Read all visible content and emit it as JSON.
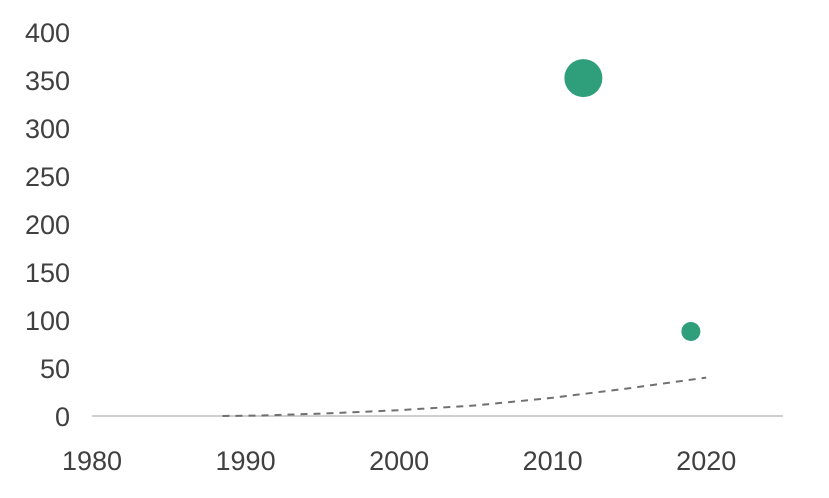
{
  "chart_data": {
    "type": "scatter",
    "title": "",
    "xlabel": "",
    "ylabel": "",
    "xlim": [
      1980,
      2025
    ],
    "ylim": [
      0,
      400
    ],
    "grid": false,
    "x_ticks": [
      "1980",
      "1990",
      "2000",
      "2010",
      "2020"
    ],
    "y_ticks": [
      "0",
      "50",
      "100",
      "150",
      "200",
      "250",
      "300",
      "350",
      "400"
    ],
    "series": [
      {
        "kind": "bubble",
        "color": "#2e9e7b",
        "points": [
          {
            "x": 2012,
            "y": 352,
            "size": "large"
          },
          {
            "x": 2019,
            "y": 88,
            "size": "small"
          }
        ]
      },
      {
        "kind": "trend-dashed",
        "color": "#707070",
        "points": [
          {
            "x": 1988.5,
            "y": 0
          },
          {
            "x": 1991,
            "y": 0.5
          },
          {
            "x": 1995,
            "y": 2.5
          },
          {
            "x": 2000,
            "y": 6
          },
          {
            "x": 2005,
            "y": 11
          },
          {
            "x": 2010,
            "y": 19
          },
          {
            "x": 2015,
            "y": 29
          },
          {
            "x": 2020,
            "y": 40
          }
        ]
      }
    ]
  }
}
